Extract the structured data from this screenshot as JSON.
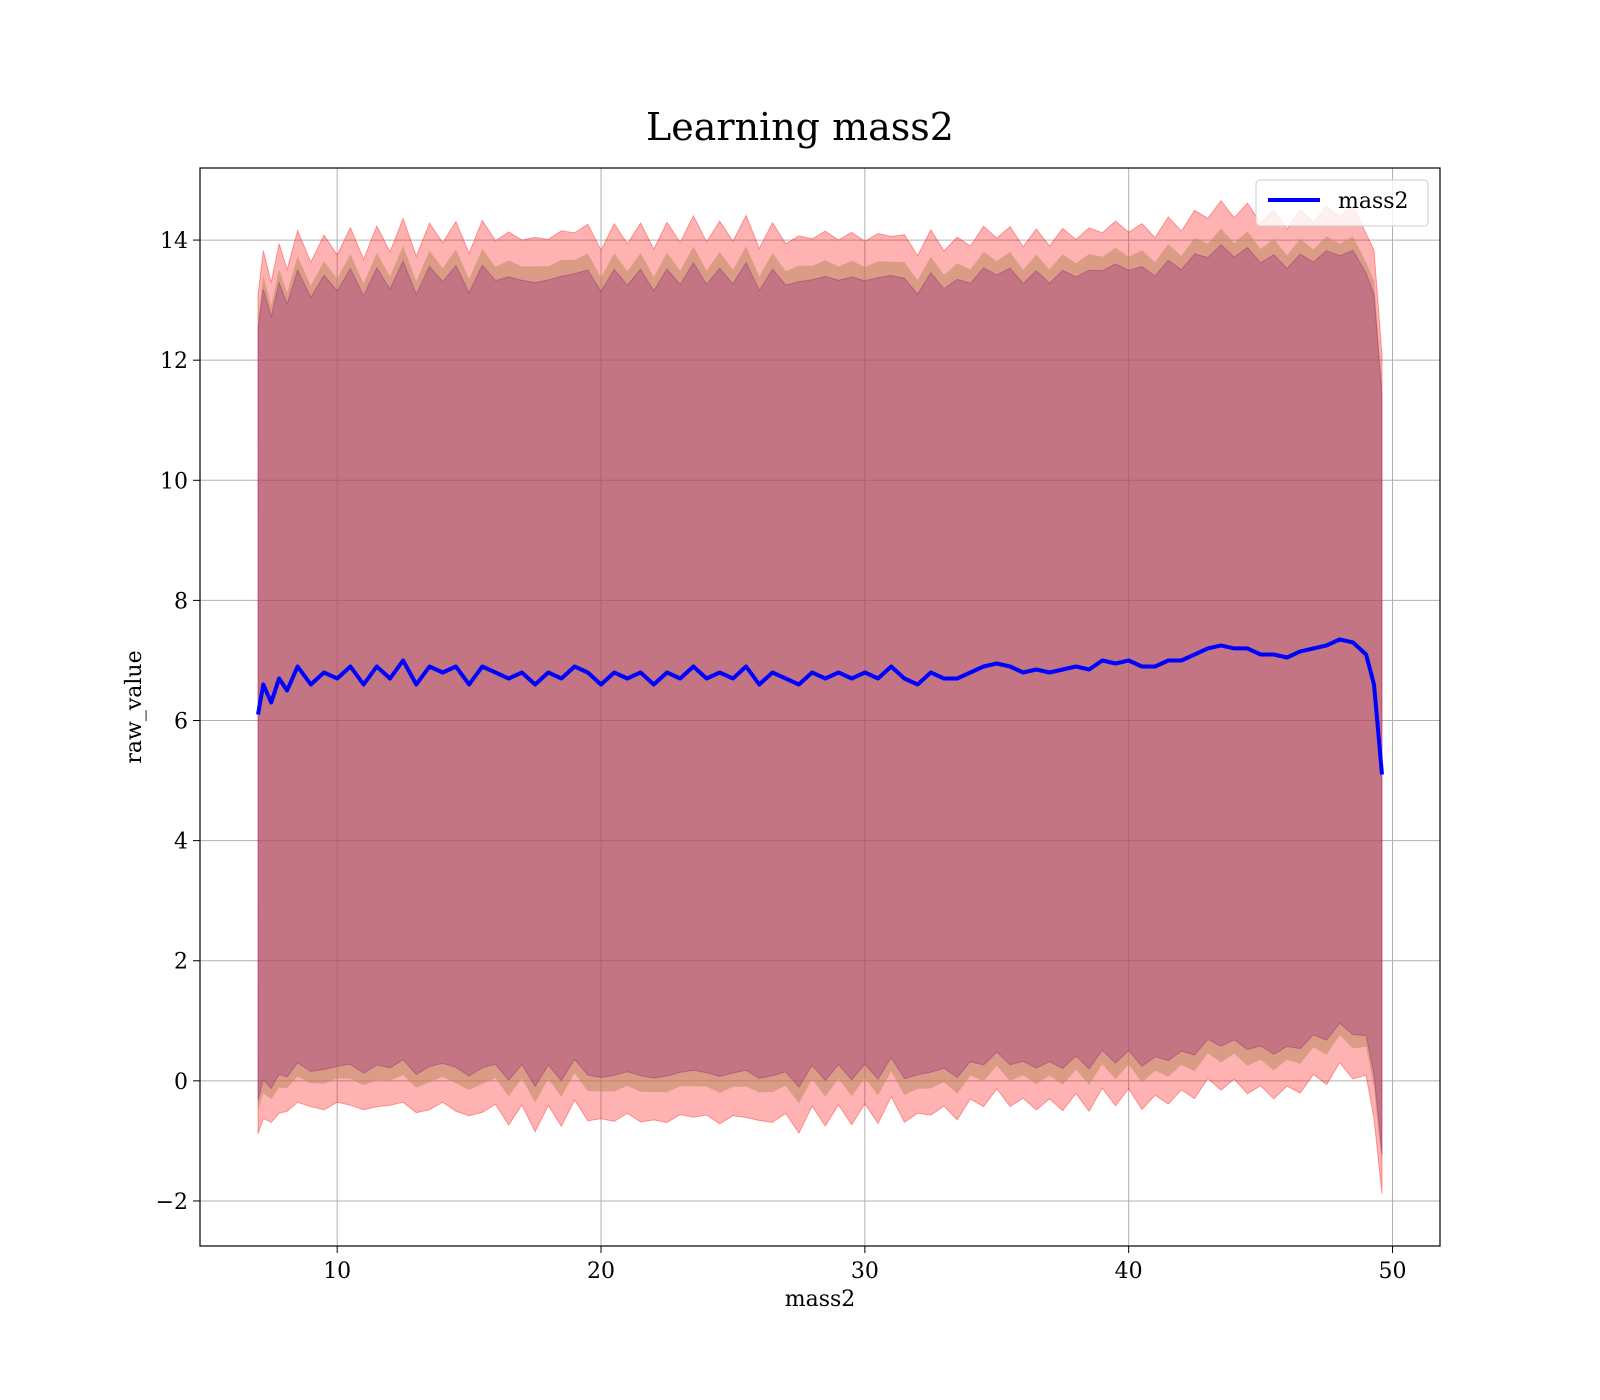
{
  "chart_data": {
    "type": "line",
    "title": "Learning mass2",
    "xlabel": "mass2",
    "ylabel": "raw_value",
    "xlim": [
      4.8,
      51.8
    ],
    "ylim": [
      -2.75,
      15.2
    ],
    "xticks": [
      10,
      20,
      30,
      40,
      50
    ],
    "yticks": [
      -2,
      0,
      2,
      4,
      6,
      8,
      10,
      12,
      14
    ],
    "ytick_labels": [
      "−2",
      "0",
      "2",
      "4",
      "6",
      "8",
      "10",
      "12",
      "14"
    ],
    "grid": true,
    "legend": {
      "position": "top-right",
      "entries": [
        "mass2"
      ]
    },
    "colors": {
      "line": "#0000ff",
      "band_outer": "#ff0000",
      "band_mid": "#bc8a5f",
      "band_inner": "#800080",
      "grid": "#b0b0b0"
    },
    "series": [
      {
        "name": "mass2",
        "x": [
          7.0,
          7.2,
          7.5,
          7.8,
          8.1,
          8.5,
          9.0,
          9.5,
          10.0,
          10.5,
          11.0,
          11.5,
          12.0,
          12.5,
          13.0,
          13.5,
          14.0,
          14.5,
          15.0,
          15.5,
          16.0,
          16.5,
          17.0,
          17.5,
          18.0,
          18.5,
          19.0,
          19.5,
          20.0,
          20.5,
          21.0,
          21.5,
          22.0,
          22.5,
          23.0,
          23.5,
          24.0,
          24.5,
          25.0,
          25.5,
          26.0,
          26.5,
          27.0,
          27.5,
          28.0,
          28.5,
          29.0,
          29.5,
          30.0,
          30.5,
          31.0,
          31.5,
          32.0,
          32.5,
          33.0,
          33.5,
          34.0,
          34.5,
          35.0,
          35.5,
          36.0,
          36.5,
          37.0,
          37.5,
          38.0,
          38.5,
          39.0,
          39.5,
          40.0,
          40.5,
          41.0,
          41.5,
          42.0,
          42.5,
          43.0,
          43.5,
          44.0,
          44.5,
          45.0,
          45.5,
          46.0,
          46.5,
          47.0,
          47.5,
          48.0,
          48.5,
          49.0,
          49.3,
          49.6
        ],
        "y": [
          6.1,
          6.6,
          6.3,
          6.7,
          6.5,
          6.9,
          6.6,
          6.8,
          6.7,
          6.9,
          6.6,
          6.9,
          6.7,
          7.0,
          6.6,
          6.9,
          6.8,
          6.9,
          6.6,
          6.9,
          6.8,
          6.7,
          6.8,
          6.6,
          6.8,
          6.7,
          6.9,
          6.8,
          6.6,
          6.8,
          6.7,
          6.8,
          6.6,
          6.8,
          6.7,
          6.9,
          6.7,
          6.8,
          6.7,
          6.9,
          6.6,
          6.8,
          6.7,
          6.6,
          6.8,
          6.7,
          6.8,
          6.7,
          6.8,
          6.7,
          6.9,
          6.7,
          6.6,
          6.8,
          6.7,
          6.7,
          6.8,
          6.9,
          6.95,
          6.9,
          6.8,
          6.85,
          6.8,
          6.85,
          6.9,
          6.85,
          7.0,
          6.95,
          7.0,
          6.9,
          6.9,
          7.0,
          7.0,
          7.1,
          7.2,
          7.25,
          7.2,
          7.2,
          7.1,
          7.1,
          7.05,
          7.15,
          7.2,
          7.25,
          7.35,
          7.3,
          7.1,
          6.6,
          5.1
        ]
      }
    ],
    "bands": {
      "outer_half_width": [
        7.1,
        7.3,
        7.4,
        7.2,
        7.3,
        7.1
      ],
      "mid_half_width": [
        6.7,
        6.85,
        6.9,
        6.8,
        6.85,
        6.6
      ],
      "inner_half_width": [
        6.5,
        6.6,
        6.65,
        6.55,
        6.6,
        6.4
      ],
      "anchor_x": [
        7.0,
        15.0,
        25.0,
        35.0,
        45.0,
        49.6
      ]
    }
  }
}
